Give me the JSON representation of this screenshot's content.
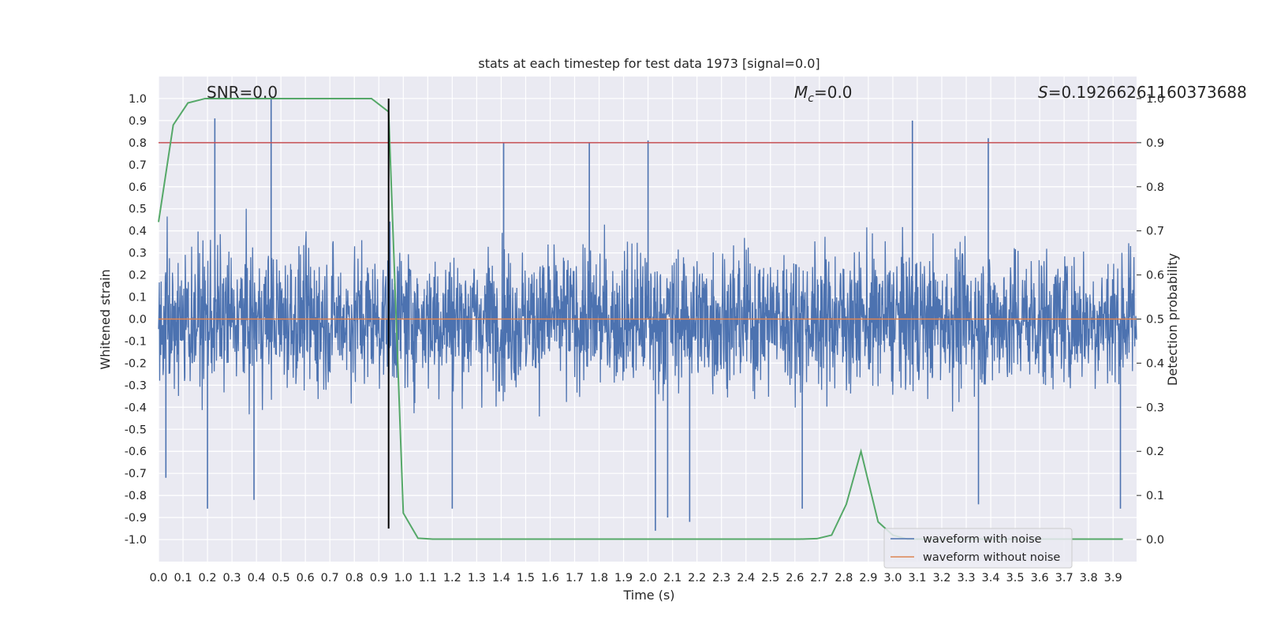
{
  "chart_data": {
    "type": "line",
    "title": "stats at each timestep for test data 1973 [signal=0.0]",
    "xlabel": "Time (s)",
    "ylabel": "Whitened strain",
    "y2label": "Detection probability",
    "xlim": [
      0.0,
      3.996
    ],
    "ylim": [
      -1.1,
      1.1
    ],
    "y2lim": [
      -0.05,
      1.05
    ],
    "grid": true,
    "x_ticks": [
      "0.0",
      "0.1",
      "0.2",
      "0.3",
      "0.4",
      "0.5",
      "0.6",
      "0.7",
      "0.8",
      "0.9",
      "1.0",
      "1.1",
      "1.2",
      "1.3",
      "1.4",
      "1.5",
      "1.6",
      "1.7",
      "1.8",
      "1.9",
      "2.0",
      "2.1",
      "2.2",
      "2.3",
      "2.4",
      "2.5",
      "2.6",
      "2.7",
      "2.8",
      "2.9",
      "3.0",
      "3.1",
      "3.2",
      "3.3",
      "3.4",
      "3.5",
      "3.6",
      "3.7",
      "3.8",
      "3.9"
    ],
    "y_ticks": [
      "1.0",
      "0.9",
      "0.8",
      "0.7",
      "0.6",
      "0.5",
      "0.4",
      "0.3",
      "0.2",
      "0.1",
      "0.0",
      "-0.1",
      "-0.2",
      "-0.3",
      "-0.4",
      "-0.5",
      "-0.6",
      "-0.7",
      "-0.8",
      "-0.9",
      "-1.0"
    ],
    "y2_ticks": [
      "1.0",
      "0.9",
      "0.8",
      "0.7",
      "0.6",
      "0.5",
      "0.4",
      "0.3",
      "0.2",
      "0.1",
      "0.0"
    ],
    "annotations": {
      "snr": "SNR=0.0",
      "mc_symbol": "M",
      "mc_sub": "c",
      "mc_value": "=0.0",
      "s_symbol": "S",
      "s_value": "=0.19266261160373688"
    },
    "legend": {
      "placement": "lower-right",
      "entries": [
        {
          "label": "waveform with noise",
          "color": "#4c72b0"
        },
        {
          "label": "waveform without noise",
          "color": "#dd8452"
        }
      ]
    },
    "series": [
      {
        "name": "waveform with noise",
        "axis": "left",
        "color": "#4c72b0",
        "style": "noise",
        "envelope_mean": 0.4,
        "amplitude_range": [
          -0.95,
          1.0
        ],
        "spikes": [
          {
            "x": 0.23,
            "y": 0.91
          },
          {
            "x": 0.46,
            "y": 1.0
          },
          {
            "x": 1.41,
            "y": 0.8
          },
          {
            "x": 1.76,
            "y": 0.8
          },
          {
            "x": 2.0,
            "y": 0.81
          },
          {
            "x": 3.08,
            "y": 0.9
          },
          {
            "x": 3.39,
            "y": 0.82
          },
          {
            "x": 0.2,
            "y": -0.86
          },
          {
            "x": 2.03,
            "y": -0.96
          },
          {
            "x": 2.08,
            "y": -0.9
          },
          {
            "x": 2.17,
            "y": -0.92
          },
          {
            "x": 3.35,
            "y": -0.84
          },
          {
            "x": 3.93,
            "y": -0.86
          },
          {
            "x": 0.03,
            "y": -0.72
          },
          {
            "x": 0.39,
            "y": -0.82
          },
          {
            "x": 1.2,
            "y": -0.86
          },
          {
            "x": 2.63,
            "y": -0.86
          }
        ]
      },
      {
        "name": "waveform without noise",
        "axis": "left",
        "color": "#dd8452",
        "x": [
          0.0,
          3.996
        ],
        "y": [
          0.0,
          0.0
        ]
      },
      {
        "name": "detection probability",
        "axis": "right",
        "color": "#55a868",
        "x": [
          0.0,
          0.06,
          0.12,
          0.19,
          0.25,
          0.31,
          0.37,
          0.44,
          0.5,
          0.56,
          0.62,
          0.69,
          0.75,
          0.81,
          0.87,
          0.94,
          1.0,
          1.06,
          1.12,
          1.19,
          1.25,
          1.31,
          1.37,
          1.44,
          1.5,
          1.56,
          1.62,
          1.69,
          1.75,
          1.81,
          1.87,
          1.94,
          2.0,
          2.06,
          2.12,
          2.19,
          2.25,
          2.31,
          2.37,
          2.44,
          2.5,
          2.56,
          2.62,
          2.69,
          2.75,
          2.81,
          2.87,
          2.94,
          3.0,
          3.06,
          3.12,
          3.19,
          3.25,
          3.31,
          3.37,
          3.44,
          3.5,
          3.56,
          3.62,
          3.69,
          3.75,
          3.81,
          3.87,
          3.94
        ],
        "y": [
          0.72,
          0.94,
          0.99,
          1.0,
          1.0,
          1.0,
          1.0,
          1.0,
          1.0,
          1.0,
          1.0,
          1.0,
          1.0,
          1.0,
          1.0,
          0.97,
          0.06,
          0.003,
          0.001,
          0.001,
          0.001,
          0.001,
          0.001,
          0.001,
          0.001,
          0.001,
          0.001,
          0.001,
          0.001,
          0.001,
          0.001,
          0.001,
          0.001,
          0.001,
          0.001,
          0.001,
          0.001,
          0.001,
          0.001,
          0.001,
          0.001,
          0.001,
          0.001,
          0.002,
          0.01,
          0.08,
          0.2,
          0.04,
          0.01,
          0.001,
          0.001,
          0.001,
          0.001,
          0.001,
          0.001,
          0.001,
          0.001,
          0.001,
          0.001,
          0.001,
          0.001,
          0.001,
          0.001,
          0.001
        ]
      }
    ],
    "reference_lines": [
      {
        "name": "threshold",
        "axis": "right",
        "y": 0.9,
        "color": "#c44e52"
      },
      {
        "name": "event-time",
        "axis": "x",
        "x": 0.94,
        "color": "#000000"
      }
    ]
  },
  "colors": {
    "plot_background": "#eaeaf2",
    "grid": "#ffffff"
  }
}
